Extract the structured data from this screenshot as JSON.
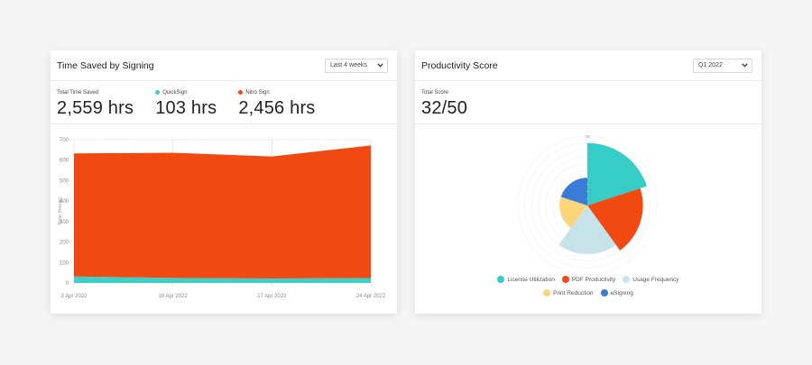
{
  "time_saved_card": {
    "title": "Time Saved by Signing",
    "range_select": {
      "value": "Last 4 weeks"
    },
    "stats": [
      {
        "label": "Total Time Saved",
        "value": "2,559 hrs",
        "dot_color": null
      },
      {
        "label": "QuickSign",
        "value": "103 hrs",
        "dot_color": "#3ecfc6"
      },
      {
        "label": "Nitro Sign",
        "value": "2,456 hrs",
        "dot_color": "#f04a12"
      }
    ]
  },
  "productivity_card": {
    "title": "Productivity Score",
    "range_select": {
      "value": "Q1 2022"
    },
    "stats": [
      {
        "label": "Total Score",
        "value": "32/50"
      }
    ],
    "legend": [
      {
        "label": "License Utilization",
        "color": "#35cdc6"
      },
      {
        "label": "PDF Productivity",
        "color": "#f04a12"
      },
      {
        "label": "Usage Frequency",
        "color": "#c7e3ea"
      },
      {
        "label": "Print Reduction",
        "color": "#fbd57a"
      },
      {
        "label": "eSigning",
        "color": "#3a7bd5"
      }
    ]
  },
  "chart_data": [
    {
      "type": "area",
      "stacked": true,
      "title": "Time Saved by Signing",
      "xlabel": "",
      "ylabel": "Time (hours)",
      "ylim": [
        0,
        700
      ],
      "yticks": [
        0,
        100,
        200,
        300,
        400,
        500,
        600,
        700
      ],
      "categories": [
        "3 Apr 2022",
        "10 Apr 2022",
        "17 Apr 2022",
        "24 Apr 2022"
      ],
      "series": [
        {
          "name": "QuickSign",
          "color": "#3ecfc6",
          "values": [
            32,
            25,
            22,
            24
          ]
        },
        {
          "name": "Nitro Sign",
          "color": "#f04a12",
          "values": [
            601,
            611,
            596,
            648
          ]
        }
      ],
      "grid": "vertical"
    },
    {
      "type": "polar_area",
      "title": "Productivity Score",
      "rmax": 10,
      "r_tick_label": "10",
      "categories": [
        "License Utilization",
        "PDF Productivity",
        "Usage Frequency",
        "Print Reduction",
        "eSigning"
      ],
      "values": [
        9,
        8,
        7,
        4,
        4
      ],
      "colors": [
        "#35cdc6",
        "#f04a12",
        "#c7e3ea",
        "#fbd57a",
        "#3a7bd5"
      ],
      "legend_position": "bottom"
    }
  ]
}
